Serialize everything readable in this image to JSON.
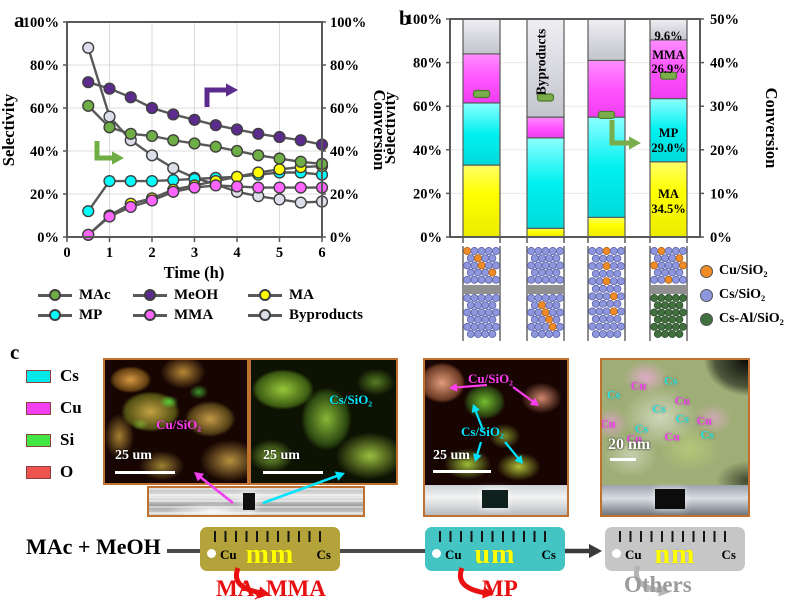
{
  "panels": {
    "a": "a",
    "b": "b",
    "c": "c"
  },
  "chart_data": [
    {
      "id": "panel-a",
      "type": "line",
      "xlabel": "Time (h)",
      "ylabel_left": "Selectivity",
      "ylabel_right": "Conversion",
      "xlim": [
        0,
        6
      ],
      "ylim": [
        0,
        100
      ],
      "xticks": [
        "0",
        "1",
        "2",
        "3",
        "4",
        "5",
        "6"
      ],
      "yticks_left": [
        "0%",
        "20%",
        "40%",
        "60%",
        "80%",
        "100%"
      ],
      "yticks_right": [
        "0%",
        "20%",
        "40%",
        "60%",
        "80%",
        "100%"
      ],
      "x": [
        0.5,
        1,
        1.5,
        2,
        2.5,
        3,
        3.5,
        4,
        4.5,
        5,
        5.5,
        6
      ],
      "series": [
        {
          "name": "MAc",
          "axis": "left",
          "color": "#6fae44",
          "values": [
            61,
            51,
            48,
            47,
            45,
            43.5,
            42,
            40,
            38,
            36.5,
            35,
            34
          ]
        },
        {
          "name": "MeOH",
          "axis": "right",
          "color": "#5b2c8e",
          "values": [
            72,
            69,
            65,
            60,
            57,
            54.5,
            52,
            50,
            48,
            46.5,
            45,
            43
          ]
        },
        {
          "name": "MA",
          "axis": "left",
          "color": "#ffff00",
          "values": [
            1,
            10,
            15.5,
            18,
            22,
            24,
            26,
            28,
            30,
            31.5,
            32.5,
            33
          ]
        },
        {
          "name": "MP",
          "axis": "left",
          "color": "#00ffff",
          "values": [
            12,
            26,
            26,
            26,
            26.5,
            27,
            27.5,
            28,
            29,
            30,
            30,
            29
          ]
        },
        {
          "name": "MMA",
          "axis": "left",
          "color": "#ff66ff",
          "values": [
            1,
            9.5,
            14,
            17,
            21,
            23,
            24,
            23.5,
            23,
            23,
            23,
            23
          ]
        },
        {
          "name": "Byproducts",
          "axis": "left",
          "color": "#dcdee9",
          "values": [
            88,
            56,
            45,
            38,
            32,
            27.5,
            24.5,
            21,
            19,
            17.5,
            16,
            16.5
          ]
        }
      ],
      "arrow_left_color": "#6fae44",
      "arrow_right_color": "#5b2c8e",
      "grid": true,
      "legend_rows": [
        [
          {
            "label": "MAc",
            "color": "#6fae44"
          },
          {
            "label": "MeOH",
            "color": "#5b2c8e"
          },
          {
            "label": "MA",
            "color": "#ffff00"
          }
        ],
        [
          {
            "label": "MP",
            "color": "#00ffff"
          },
          {
            "label": "MMA",
            "color": "#ff66ff"
          },
          {
            "label": "Byproducts",
            "color": "#dcdee9"
          }
        ]
      ]
    },
    {
      "id": "panel-b",
      "type": "stacked-bar",
      "ylabel_left": "Selectivity",
      "ylabel_right": "Conversion",
      "ylim_left": [
        0,
        100
      ],
      "ylim_right": [
        0,
        50
      ],
      "yticks_left": [
        "0%",
        "20%",
        "40%",
        "60%",
        "80%",
        "100%"
      ],
      "yticks_right": [
        "0%",
        "10%",
        "20%",
        "30%",
        "40%",
        "50%"
      ],
      "segments": [
        "MA",
        "MP",
        "MMA",
        "Byproducts"
      ],
      "segment_colors": {
        "MA": "#ffff00",
        "MP": "#00f0f0",
        "MMA": "#ff55ff",
        "Byproducts": "#d4d4dc"
      },
      "marker_color": "#79ad4c",
      "bars": [
        {
          "MA": 33,
          "MP": 28.5,
          "MMA": 22.5,
          "Byproducts": 16,
          "conversion": 32.8
        },
        {
          "MA": 4,
          "MP": 41.5,
          "MMA": 9.5,
          "Byproducts": 45,
          "conversion": 32.0
        },
        {
          "MA": 9,
          "MP": 46,
          "MMA": 26,
          "Byproducts": 19,
          "conversion": 28.0
        },
        {
          "MA": 34.5,
          "MP": 29,
          "MMA": 26.9,
          "Byproducts": 9.6,
          "conversion": 37.0
        }
      ],
      "bar2_vertical_label": "Byproducts",
      "bar4_annotations": {
        "byproducts_pct": "9.6%",
        "items": [
          {
            "name": "MMA",
            "pct": "26.9%"
          },
          {
            "name": "MP",
            "pct": "29.0%"
          },
          {
            "name": "MA",
            "pct": "34.5%"
          }
        ]
      }
    }
  ],
  "catalysts": {
    "legend": [
      {
        "label": "Cu/SiO₂",
        "color": "#f08c28"
      },
      {
        "label": "Cs/SiO₂",
        "color": "#8e96dd"
      },
      {
        "label": "Cs-Al/SiO₂",
        "color": "#41703f"
      }
    ],
    "sphere_colors": {
      "cs": "#8e96dd",
      "csal": "#41703f",
      "cu": "#f08c28"
    },
    "beds": [
      {
        "top": {
          "base": "cs",
          "cu": [
            [
              0,
              0
            ],
            [
              1,
              1
            ],
            [
              2,
              2
            ],
            [
              3,
              3
            ]
          ]
        },
        "bottom": {
          "base": "cs",
          "cu": []
        }
      },
      {
        "top": {
          "base": "cs",
          "cu": []
        },
        "bottom": {
          "base": "cs",
          "cu": [
            [
              1,
              1
            ],
            [
              2,
              2
            ],
            [
              3,
              2
            ],
            [
              4,
              3
            ]
          ]
        }
      },
      {
        "full": {
          "base": "cs",
          "cu": [
            [
              0,
              2
            ],
            [
              2,
              2
            ],
            [
              4,
              2
            ],
            [
              6,
              3
            ],
            [
              8,
              3
            ]
          ]
        }
      },
      {
        "top": {
          "base": "cs",
          "cu": [
            [
              0,
              1
            ],
            [
              1,
              3
            ],
            [
              2,
              0
            ],
            [
              2,
              4
            ],
            [
              4,
              2
            ]
          ]
        },
        "bottom": {
          "base": "csal",
          "cu": []
        }
      }
    ]
  },
  "panel_c": {
    "legend": [
      {
        "label": "Cs",
        "color": "#00e8e8"
      },
      {
        "label": "Cu",
        "color": "#f23ff2"
      },
      {
        "label": "Si",
        "color": "#44e644"
      },
      {
        "label": "O",
        "color": "#ef5350"
      }
    ],
    "images": [
      {
        "label": "Cu/SiO₂",
        "label_color": "#ff3df2",
        "scale_label": "25 um"
      },
      {
        "label": "Cs/SiO₂",
        "label_color": "#00e5ff",
        "scale_label": "25 um"
      },
      {
        "labels": [
          {
            "text": "Cu/SiO₂",
            "color": "#ff3df2"
          },
          {
            "text": "Cs/SiO₂",
            "color": "#00e5ff"
          }
        ],
        "scale_label": "25 um"
      },
      {
        "scale_label": "20 nm",
        "markers": [
          {
            "text": "Cu",
            "color": "#f23ff2",
            "x": 25,
            "y": 14
          },
          {
            "text": "Cs",
            "color": "#27e3e3",
            "x": 47,
            "y": 10
          },
          {
            "text": "Cs",
            "color": "#27e3e3",
            "x": 8,
            "y": 21
          },
          {
            "text": "Cu",
            "color": "#f23ff2",
            "x": 55,
            "y": 26
          },
          {
            "text": "Cs",
            "color": "#27e3e3",
            "x": 39,
            "y": 32
          },
          {
            "text": "Cs",
            "color": "#27e3e3",
            "x": 55,
            "y": 40
          },
          {
            "text": "Cu",
            "color": "#f23ff2",
            "x": 4,
            "y": 44
          },
          {
            "text": "Cu",
            "color": "#f23ff2",
            "x": 70,
            "y": 42
          },
          {
            "text": "Cs",
            "color": "#27e3e3",
            "x": 27,
            "y": 48
          },
          {
            "text": "Cu",
            "color": "#f23ff2",
            "x": 22,
            "y": 56
          },
          {
            "text": "Cu",
            "color": "#f23ff2",
            "x": 48,
            "y": 54
          },
          {
            "text": "Cs",
            "color": "#27e3e3",
            "x": 72,
            "y": 53
          }
        ]
      }
    ]
  },
  "scheme": {
    "reactants": "MAc + MeOH",
    "rulers": [
      {
        "scale": "mm",
        "left": "Cu",
        "right": "Cs",
        "color": "#b3a33a",
        "product": "MA, MMA",
        "product_color": "#e81010",
        "arrow_color": "#e81010"
      },
      {
        "scale": "um",
        "left": "Cu",
        "right": "Cs",
        "color": "#45c4c4",
        "product": "MP",
        "product_color": "#e81010",
        "arrow_color": "#e81010"
      },
      {
        "scale": "nm",
        "left": "Cu",
        "right": "Cs",
        "color": "#c6c6c6",
        "product": "Others",
        "product_color": "#9b9b9b",
        "arrow_color": "#b5b5b5"
      }
    ]
  }
}
